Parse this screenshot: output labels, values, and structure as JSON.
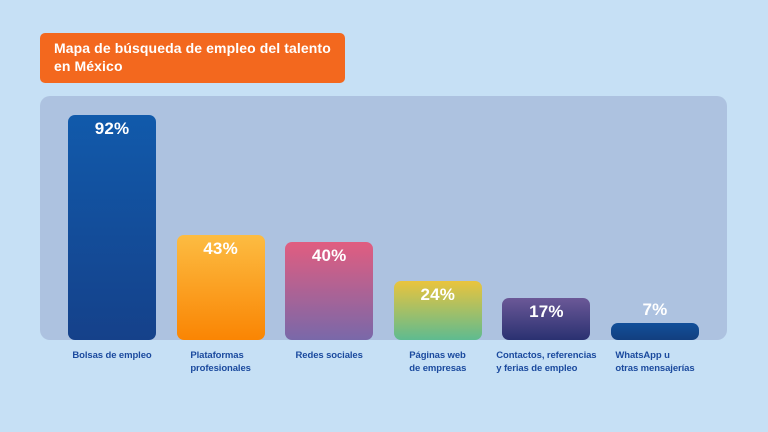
{
  "header": {
    "title_line1": "Mapa de búsqueda de empleo del talento",
    "title_line2": "en México"
  },
  "colors": {
    "page_background": "#c6e0f5",
    "panel_background": "#adc2e0",
    "title_background": "#f3681e",
    "title_text": "#ffffff",
    "category_text": "#1b4a9e",
    "value_text": "#ffffff"
  },
  "chart_data": {
    "type": "bar",
    "title": "Mapa de búsqueda de empleo del talento en México",
    "unit": "%",
    "ylim": [
      0,
      100
    ],
    "grid": false,
    "legend": false,
    "xlabel": "",
    "ylabel": "",
    "categories": [
      "Bolsas de empleo",
      "Plataformas profesionales",
      "Redes sociales",
      "Páginas web de empresas",
      "Contactos, referencias y ferias de empleo",
      "WhatsApp u otras mensajerías"
    ],
    "values": [
      92,
      43,
      40,
      24,
      17,
      7
    ],
    "bars": [
      {
        "category": "Bolsas de empleo",
        "label_lines": [
          "Bolsas de empleo"
        ],
        "value": 92,
        "display_value": "92%",
        "color_top": "#115aab",
        "color_bottom": "#15418a",
        "value_label_inside": true
      },
      {
        "category": "Plataformas profesionales",
        "label_lines": [
          "Plataformas",
          "profesionales"
        ],
        "value": 43,
        "display_value": "43%",
        "color_top": "#fcbc42",
        "color_bottom": "#fa8503",
        "value_label_inside": true
      },
      {
        "category": "Redes sociales",
        "label_lines": [
          "Redes sociales"
        ],
        "value": 40,
        "display_value": "40%",
        "color_top": "#e15d80",
        "color_bottom": "#7968a9",
        "value_label_inside": true
      },
      {
        "category": "Páginas web de empresas",
        "label_lines": [
          "Páginas web",
          "de empresas"
        ],
        "value": 24,
        "display_value": "24%",
        "color_top": "#eac43d",
        "color_bottom": "#5ebb90",
        "value_label_inside": true
      },
      {
        "category": "Contactos, referencias y ferias de empleo",
        "label_lines": [
          "Contactos, referencias",
          "y ferias de empleo"
        ],
        "value": 17,
        "display_value": "17%",
        "color_top": "#6b5897",
        "color_bottom": "#2a3171",
        "value_label_inside": true
      },
      {
        "category": "WhatsApp u otras mensajerías",
        "label_lines": [
          "WhatsApp u",
          "otras mensajerías"
        ],
        "value": 7,
        "display_value": "7%",
        "color_top": "#124f9a",
        "color_bottom": "#123f7f",
        "value_label_inside": false
      }
    ]
  }
}
